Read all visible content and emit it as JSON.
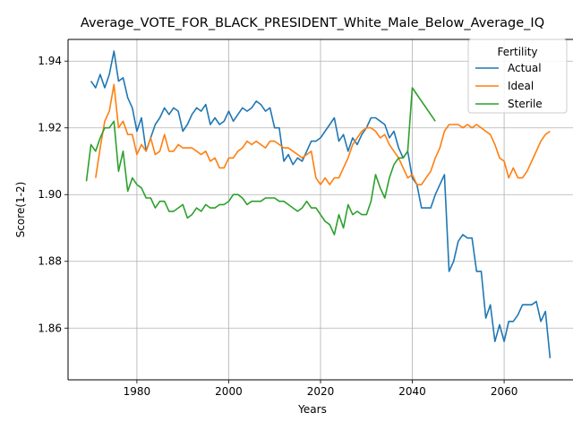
{
  "chart_data": {
    "type": "line",
    "title": "Average_VOTE_FOR_BLACK_PRESIDENT_White_Male_Below_Average_IQ",
    "xlabel": "Years",
    "ylabel": "Score(1-2)",
    "xlim": [
      1965,
      2075
    ],
    "ylim": [
      1.8445,
      1.9465
    ],
    "xticks": [
      1980,
      2000,
      2020,
      2040,
      2060
    ],
    "yticks": [
      1.86,
      1.88,
      1.9,
      1.92,
      1.94
    ],
    "ytick_labels": [
      "1.86",
      "1.88",
      "1.90",
      "1.92",
      "1.94"
    ],
    "grid": true,
    "legend": {
      "title": "Fertility",
      "placement": "top-right"
    },
    "series": [
      {
        "name": "Actual",
        "color": "#1f77b4",
        "x": [
          1970,
          1971,
          1972,
          1973,
          1974,
          1975,
          1976,
          1977,
          1978,
          1979,
          1980,
          1981,
          1982,
          1983,
          1984,
          1985,
          1986,
          1987,
          1988,
          1989,
          1990,
          1991,
          1992,
          1993,
          1994,
          1995,
          1996,
          1997,
          1998,
          1999,
          2000,
          2001,
          2002,
          2003,
          2004,
          2005,
          2006,
          2007,
          2008,
          2009,
          2010,
          2011,
          2012,
          2013,
          2014,
          2015,
          2016,
          2017,
          2018,
          2019,
          2020,
          2021,
          2022,
          2023,
          2024,
          2025,
          2026,
          2027,
          2028,
          2029,
          2030,
          2031,
          2032,
          2033,
          2034,
          2035,
          2036,
          2037,
          2038,
          2039,
          2040,
          2041,
          2042,
          2043,
          2044,
          2045,
          2046,
          2047,
          2048,
          2049,
          2050,
          2051,
          2052,
          2053,
          2054,
          2055,
          2056,
          2057,
          2058,
          2059,
          2060,
          2061,
          2062,
          2063,
          2064,
          2065,
          2066,
          2067,
          2068,
          2069,
          2070
        ],
        "y": [
          1.934,
          1.932,
          1.936,
          1.932,
          1.936,
          1.943,
          1.934,
          1.935,
          1.929,
          1.926,
          1.919,
          1.923,
          1.913,
          1.917,
          1.921,
          1.923,
          1.926,
          1.924,
          1.926,
          1.925,
          1.919,
          1.921,
          1.924,
          1.926,
          1.925,
          1.927,
          1.921,
          1.923,
          1.921,
          1.922,
          1.925,
          1.922,
          1.924,
          1.926,
          1.925,
          1.926,
          1.928,
          1.927,
          1.925,
          1.926,
          1.92,
          1.92,
          1.91,
          1.912,
          1.909,
          1.911,
          1.91,
          1.913,
          1.916,
          1.916,
          1.917,
          1.919,
          1.921,
          1.923,
          1.916,
          1.918,
          1.913,
          1.917,
          1.915,
          1.918,
          1.92,
          1.923,
          1.923,
          1.922,
          1.921,
          1.917,
          1.919,
          1.914,
          1.911,
          1.913,
          1.905,
          1.903,
          1.896,
          1.896,
          1.896,
          1.9,
          1.903,
          1.906,
          1.877,
          1.88,
          1.886,
          1.888,
          1.887,
          1.887,
          1.877,
          1.877,
          1.863,
          1.867,
          1.856,
          1.861,
          1.856,
          1.862,
          1.862,
          1.864,
          1.867,
          1.867,
          1.867,
          1.868,
          1.862,
          1.865,
          1.851
        ]
      },
      {
        "name": "Ideal",
        "color": "#ff7f0e",
        "x": [
          1971,
          1972,
          1973,
          1974,
          1975,
          1976,
          1977,
          1978,
          1979,
          1980,
          1981,
          1982,
          1983,
          1984,
          1985,
          1986,
          1987,
          1988,
          1989,
          1990,
          1991,
          1992,
          1993,
          1994,
          1995,
          1996,
          1997,
          1998,
          1999,
          2000,
          2001,
          2002,
          2003,
          2004,
          2005,
          2006,
          2007,
          2008,
          2009,
          2010,
          2011,
          2012,
          2013,
          2014,
          2015,
          2016,
          2017,
          2018,
          2019,
          2020,
          2021,
          2022,
          2023,
          2024,
          2025,
          2026,
          2027,
          2028,
          2029,
          2030,
          2031,
          2032,
          2033,
          2034,
          2035,
          2036,
          2037,
          2038,
          2039,
          2040,
          2041,
          2042,
          2043,
          2044,
          2045,
          2046,
          2047,
          2048,
          2049,
          2050,
          2051,
          2052,
          2053,
          2054,
          2055,
          2056,
          2057,
          2058,
          2059,
          2060,
          2061,
          2062,
          2063,
          2064,
          2065,
          2066,
          2067,
          2068,
          2069,
          2070
        ],
        "y": [
          1.905,
          1.914,
          1.922,
          1.925,
          1.933,
          1.92,
          1.922,
          1.918,
          1.918,
          1.912,
          1.915,
          1.913,
          1.917,
          1.912,
          1.913,
          1.918,
          1.913,
          1.913,
          1.915,
          1.914,
          1.914,
          1.914,
          1.913,
          1.912,
          1.913,
          1.91,
          1.911,
          1.908,
          1.908,
          1.911,
          1.911,
          1.913,
          1.914,
          1.916,
          1.915,
          1.916,
          1.915,
          1.914,
          1.916,
          1.916,
          1.915,
          1.914,
          1.914,
          1.913,
          1.912,
          1.911,
          1.912,
          1.913,
          1.905,
          1.903,
          1.905,
          1.903,
          1.905,
          1.905,
          1.908,
          1.911,
          1.915,
          1.917,
          1.919,
          1.92,
          1.92,
          1.919,
          1.917,
          1.918,
          1.915,
          1.913,
          1.911,
          1.908,
          1.905,
          1.906,
          1.903,
          1.903,
          1.905,
          1.907,
          1.911,
          1.914,
          1.919,
          1.921,
          1.921,
          1.921,
          1.92,
          1.921,
          1.92,
          1.921,
          1.92,
          1.919,
          1.918,
          1.915,
          1.911,
          1.91,
          1.905,
          1.908,
          1.905,
          1.905,
          1.907,
          1.91,
          1.913,
          1.916,
          1.918,
          1.919
        ]
      },
      {
        "name": "Sterile",
        "color": "#2ca02c",
        "x": [
          1969,
          1970,
          1971,
          1972,
          1973,
          1974,
          1975,
          1976,
          1977,
          1978,
          1979,
          1980,
          1981,
          1982,
          1983,
          1984,
          1985,
          1986,
          1987,
          1988,
          1989,
          1990,
          1991,
          1992,
          1993,
          1994,
          1995,
          1996,
          1997,
          1998,
          1999,
          2000,
          2001,
          2002,
          2003,
          2004,
          2005,
          2006,
          2007,
          2008,
          2009,
          2010,
          2011,
          2012,
          2013,
          2014,
          2015,
          2016,
          2017,
          2018,
          2019,
          2020,
          2021,
          2022,
          2023,
          2024,
          2025,
          2026,
          2027,
          2028,
          2029,
          2030,
          2031,
          2032,
          2033,
          2034,
          2035,
          2036,
          2037,
          2038,
          2039,
          2040,
          2045
        ],
        "y": [
          1.904,
          1.915,
          1.913,
          1.917,
          1.92,
          1.92,
          1.922,
          1.907,
          1.913,
          1.901,
          1.905,
          1.903,
          1.902,
          1.899,
          1.899,
          1.896,
          1.898,
          1.898,
          1.895,
          1.895,
          1.896,
          1.897,
          1.893,
          1.894,
          1.896,
          1.895,
          1.897,
          1.896,
          1.896,
          1.897,
          1.897,
          1.898,
          1.9,
          1.9,
          1.899,
          1.897,
          1.898,
          1.898,
          1.898,
          1.899,
          1.899,
          1.899,
          1.898,
          1.898,
          1.897,
          1.896,
          1.895,
          1.896,
          1.898,
          1.896,
          1.896,
          1.894,
          1.892,
          1.891,
          1.888,
          1.894,
          1.89,
          1.897,
          1.894,
          1.895,
          1.894,
          1.894,
          1.898,
          1.906,
          1.902,
          1.899,
          1.905,
          1.909,
          1.911,
          1.911,
          1.913,
          1.932,
          1.922
        ]
      }
    ]
  }
}
